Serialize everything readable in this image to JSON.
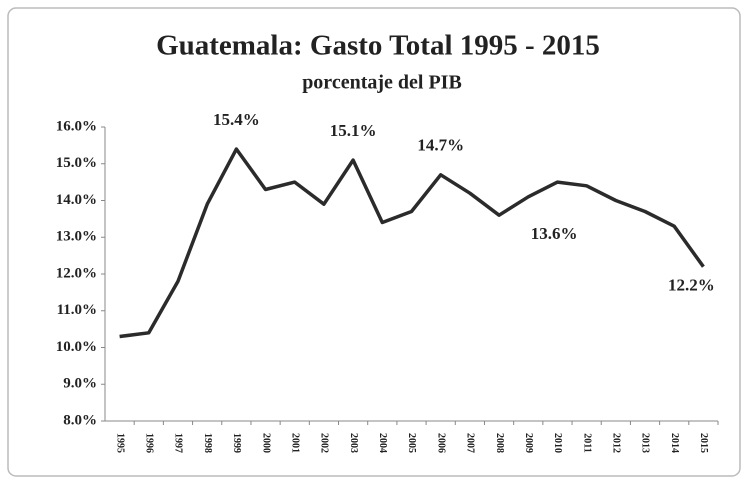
{
  "chart_data": {
    "type": "line",
    "title": "Guatemala: Gasto Total 1995 - 2015",
    "subtitle": "porcentaje del PIB",
    "categories": [
      "1995",
      "1996",
      "1997",
      "1998",
      "1999",
      "2000",
      "2001",
      "2002",
      "2003",
      "2004",
      "2005",
      "2006",
      "2007",
      "2008",
      "2009",
      "2010",
      "2011",
      "2012",
      "2013",
      "2014",
      "2015"
    ],
    "values": [
      10.3,
      10.4,
      11.8,
      13.9,
      15.4,
      14.3,
      14.5,
      13.9,
      15.1,
      13.4,
      13.7,
      14.7,
      14.2,
      13.6,
      14.1,
      14.5,
      14.4,
      14.0,
      13.7,
      13.3,
      12.2
    ],
    "value_labels": [
      null,
      null,
      null,
      null,
      "15.4%",
      null,
      null,
      null,
      "15.1%",
      null,
      null,
      "14.7%",
      null,
      "13.6%",
      null,
      null,
      null,
      null,
      null,
      null,
      "12.2%"
    ],
    "color": "#2b2b2b",
    "ylim": [
      8,
      16
    ],
    "yticks": [
      {
        "value": 8,
        "label": "8.0%"
      },
      {
        "value": 9,
        "label": "9.0%"
      },
      {
        "value": 10,
        "label": "10.0%"
      },
      {
        "value": 11,
        "label": "11.0%"
      },
      {
        "value": 12,
        "label": "12.0%"
      },
      {
        "value": 13,
        "label": "13.0%"
      },
      {
        "value": 14,
        "label": "14.0%"
      },
      {
        "value": 15,
        "label": "15.0%"
      },
      {
        "value": 16,
        "label": "16.0%"
      }
    ],
    "grid": false
  }
}
